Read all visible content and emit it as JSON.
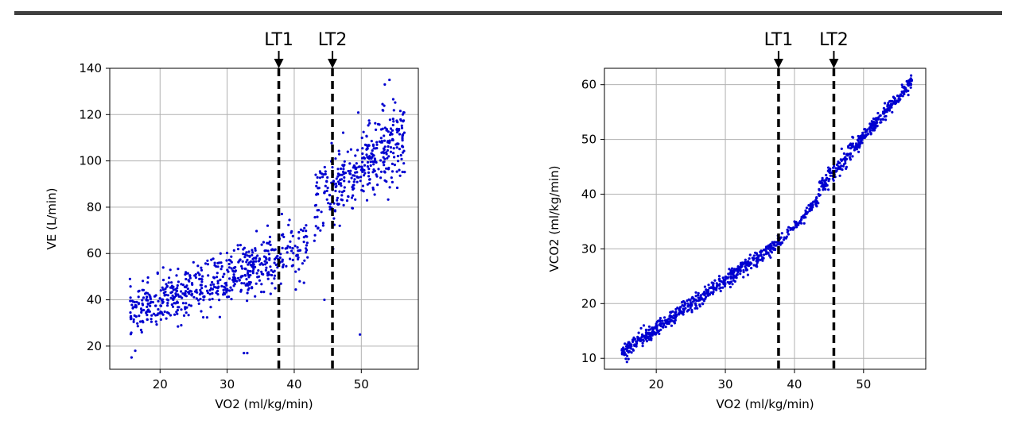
{
  "colors": {
    "points": "#0000d0",
    "threshold": "#000000",
    "grid": "#b0b0b0",
    "divider": "#404040"
  },
  "chart_data": [
    {
      "type": "scatter",
      "title": "",
      "xlabel": "VO2 (ml/kg/min)",
      "ylabel": "VE (L/min)",
      "xlim": [
        12.5,
        58.5
      ],
      "ylim": [
        10,
        140
      ],
      "xticks": [
        20,
        30,
        40,
        50
      ],
      "yticks": [
        20,
        40,
        60,
        80,
        100,
        120,
        140
      ],
      "grid": true,
      "thresholds": [
        {
          "label": "LT1",
          "x": 37.7
        },
        {
          "label": "LT2",
          "x": 45.7
        }
      ],
      "segments": [
        {
          "x0": 15.5,
          "x1": 37.7,
          "y0": 34,
          "y1": 58,
          "spread": 5.5,
          "count": 520
        },
        {
          "x0": 37.7,
          "x1": 42.0,
          "y0": 58,
          "y1": 64,
          "spread": 6,
          "count": 70
        },
        {
          "x0": 43.0,
          "x1": 48.0,
          "y0": 80,
          "y1": 95,
          "spread": 8,
          "count": 120
        },
        {
          "x0": 48.0,
          "x1": 56.5,
          "y0": 92,
          "y1": 112,
          "spread": 8,
          "count": 260
        }
      ],
      "outliers": [
        [
          16.3,
          18
        ],
        [
          32.5,
          17
        ],
        [
          33.0,
          17
        ],
        [
          44.5,
          40
        ],
        [
          49.8,
          25
        ],
        [
          54.2,
          135
        ],
        [
          53.5,
          133
        ],
        [
          45.8,
          62
        ]
      ]
    },
    {
      "type": "scatter",
      "title": "",
      "xlabel": "VO2 (ml/kg/min)",
      "ylabel": "VCO2 (ml/kg/min)",
      "xlim": [
        12.5,
        59.0
      ],
      "ylim": [
        8,
        63
      ],
      "xticks": [
        20,
        30,
        40,
        50
      ],
      "yticks": [
        10,
        20,
        30,
        40,
        50,
        60
      ],
      "grid": true,
      "thresholds": [
        {
          "label": "LT1",
          "x": 37.7
        },
        {
          "label": "LT2",
          "x": 45.7
        }
      ],
      "segments": [
        {
          "x0": 15.0,
          "x1": 37.7,
          "y0": 11,
          "y1": 31,
          "spread": 0.7,
          "count": 520
        },
        {
          "x0": 37.7,
          "x1": 43.5,
          "y0": 31,
          "y1": 39,
          "spread": 0.5,
          "count": 90
        },
        {
          "x0": 43.5,
          "x1": 49.0,
          "y0": 41,
          "y1": 49,
          "spread": 0.9,
          "count": 120
        },
        {
          "x0": 49.0,
          "x1": 57.0,
          "y0": 49,
          "y1": 60.5,
          "spread": 0.7,
          "count": 200
        }
      ],
      "outliers": [
        [
          17.8,
          15.5
        ],
        [
          18.2,
          16.0
        ]
      ]
    }
  ]
}
